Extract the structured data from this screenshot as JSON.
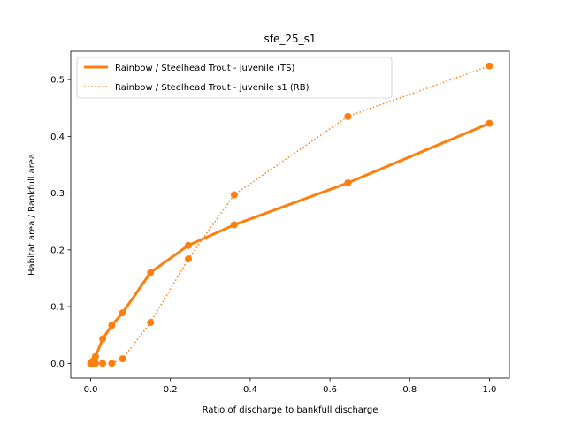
{
  "chart_data": {
    "type": "line",
    "title": "sfe_25_s1",
    "xlabel": "Ratio of discharge to bankfull discharge",
    "ylabel": "Habitat area / Bankfull area",
    "xlim": [
      -0.05,
      1.05
    ],
    "ylim": [
      -0.026,
      0.55
    ],
    "xticks": [
      0.0,
      0.2,
      0.4,
      0.6,
      0.8,
      1.0
    ],
    "xtick_labels": [
      "0.0",
      "0.2",
      "0.4",
      "0.6",
      "0.8",
      "1.0"
    ],
    "yticks": [
      0.0,
      0.1,
      0.2,
      0.3,
      0.4,
      0.5
    ],
    "ytick_labels": [
      "0.0",
      "0.1",
      "0.2",
      "0.3",
      "0.4",
      "0.5"
    ],
    "grid": false,
    "legend_position": "upper-left",
    "series": [
      {
        "name": "Rainbow / Steelhead Trout - juvenile (TS)",
        "style": "solid",
        "color": "#ff7f0e",
        "x": [
          0.0,
          0.005,
          0.012,
          0.03,
          0.053,
          0.08,
          0.15,
          0.245,
          0.36,
          0.645,
          1.0
        ],
        "y": [
          0.0,
          0.004,
          0.012,
          0.043,
          0.067,
          0.089,
          0.16,
          0.208,
          0.244,
          0.318,
          0.423
        ]
      },
      {
        "name": "Rainbow / Steelhead Trout - juvenile s1 (RB)",
        "style": "dotted",
        "color": "#ff7f0e",
        "x": [
          0.0,
          0.005,
          0.012,
          0.03,
          0.053,
          0.08,
          0.15,
          0.245,
          0.36,
          0.645,
          1.0
        ],
        "y": [
          0.0,
          0.0,
          0.0,
          0.0,
          0.0,
          0.008,
          0.072,
          0.184,
          0.297,
          0.435,
          0.524
        ]
      }
    ]
  }
}
